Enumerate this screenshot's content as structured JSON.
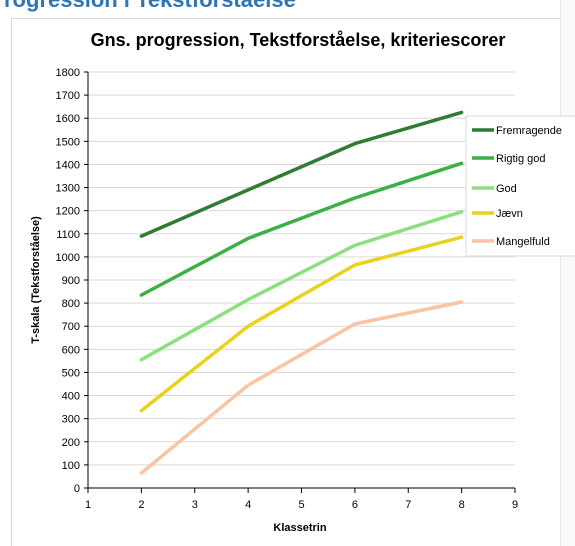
{
  "page": {
    "heading_fragment": "rogression i Tekstforståelse"
  },
  "chart_data": {
    "type": "line",
    "title": "Gns. progression,  Tekstforståelse,  kriteriescorer",
    "xlabel": "Klassetrin",
    "ylabel": "T-skala  (Tekstforståelse)",
    "xlim": [
      1,
      9
    ],
    "ylim": [
      0,
      1800
    ],
    "xticks": [
      1,
      2,
      3,
      4,
      5,
      6,
      7,
      8,
      9
    ],
    "yticks": [
      0,
      100,
      200,
      300,
      400,
      500,
      600,
      700,
      800,
      900,
      1000,
      1100,
      1200,
      1300,
      1400,
      1500,
      1600,
      1700,
      1800
    ],
    "grid": true,
    "legend_position": "right",
    "x": [
      2,
      4,
      6,
      8
    ],
    "series": [
      {
        "name": "Fremragende",
        "values": [
          1090,
          1290,
          1490,
          1625
        ],
        "color": "#2e7d32"
      },
      {
        "name": "Rigtig god",
        "values": [
          835,
          1080,
          1255,
          1405
        ],
        "color": "#3cb043"
      },
      {
        "name": "God",
        "values": [
          555,
          815,
          1050,
          1195
        ],
        "color": "#8be07d"
      },
      {
        "name": "Jævn",
        "values": [
          335,
          700,
          965,
          1085
        ],
        "color": "#e8d21c"
      },
      {
        "name": "Mangelfuld",
        "values": [
          65,
          445,
          710,
          805
        ],
        "color": "#f8c4a2"
      }
    ]
  }
}
